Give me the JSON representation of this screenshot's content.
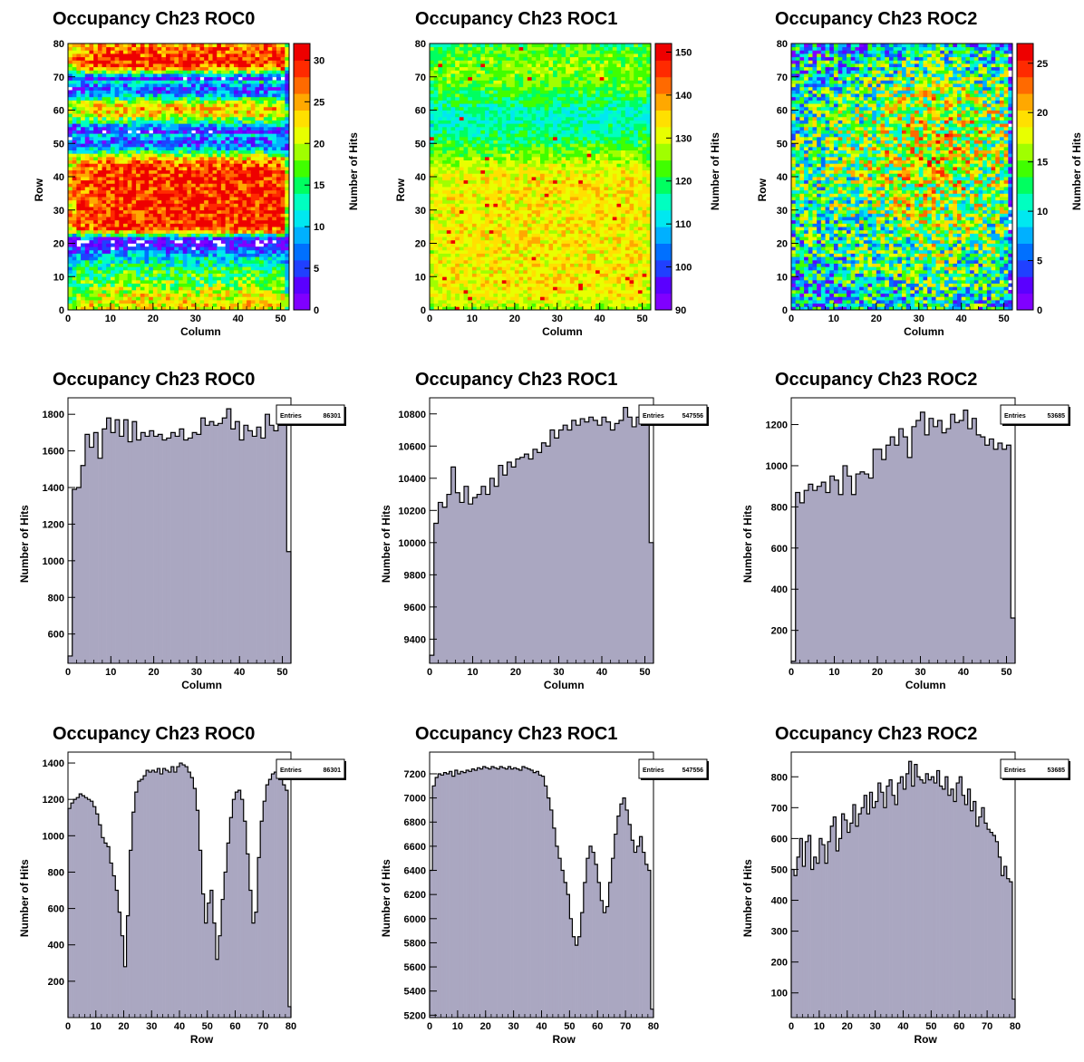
{
  "chart_data": [
    {
      "id": "roc0-map",
      "type": "heatmap",
      "title": "Occupancy Ch23 ROC0",
      "xlabel": "Column",
      "ylabel": "Row",
      "zlabel": "Number of Hits",
      "xlim": [
        0,
        52
      ],
      "ylim": [
        0,
        80
      ],
      "zlim": [
        0,
        32
      ],
      "xticks": [
        0,
        10,
        20,
        30,
        40,
        50
      ],
      "yticks": [
        0,
        10,
        20,
        30,
        40,
        50,
        60,
        70,
        80
      ],
      "zticks": [
        0,
        5,
        10,
        15,
        20,
        25,
        30
      ],
      "row_profile": [
        0.68,
        0.7,
        0.69,
        0.67,
        0.66,
        0.63,
        0.6,
        0.57,
        0.54,
        0.52,
        0.5,
        0.47,
        0.45,
        0.42,
        0.4,
        0.36,
        0.3,
        0.22,
        0.14,
        0.08,
        0.03,
        0.18,
        0.45,
        0.75,
        0.88,
        0.91,
        0.92,
        0.92,
        0.93,
        0.92,
        0.93,
        0.92,
        0.93,
        0.92,
        0.93,
        0.93,
        0.92,
        0.93,
        0.92,
        0.93,
        0.94,
        0.92,
        0.9,
        0.86,
        0.8,
        0.72,
        0.6,
        0.45,
        0.3,
        0.2,
        0.18,
        0.22,
        0.3,
        0.1,
        0.18,
        0.3,
        0.45,
        0.58,
        0.68,
        0.72,
        0.74,
        0.7,
        0.6,
        0.45,
        0.3,
        0.2,
        0.18,
        0.25,
        0.35,
        0.1,
        0.3,
        0.55,
        0.78,
        0.88,
        0.92,
        0.92,
        0.9,
        0.88,
        0.85,
        0.8
      ],
      "col_profile": [
        0.8,
        0.86,
        0.92,
        0.94,
        0.95,
        0.96,
        0.97,
        0.98,
        0.99,
        1,
        1,
        1,
        1,
        1,
        1,
        1,
        1,
        1,
        1,
        1,
        1,
        1,
        1,
        1,
        1,
        1,
        1,
        1,
        1,
        1,
        1,
        1,
        1,
        1,
        1,
        1,
        1,
        1,
        1,
        1,
        1,
        1,
        1,
        1,
        1,
        1,
        1,
        1,
        1,
        1,
        1,
        0.65
      ],
      "zmax": 32
    },
    {
      "id": "roc1-map",
      "type": "heatmap",
      "title": "Occupancy Ch23 ROC1",
      "xlabel": "Column",
      "ylabel": "Row",
      "zlabel": "Number of Hits",
      "xlim": [
        0,
        52
      ],
      "ylim": [
        0,
        80
      ],
      "zlim": [
        90,
        152
      ],
      "xticks": [
        0,
        10,
        20,
        30,
        40,
        50
      ],
      "yticks": [
        0,
        10,
        20,
        30,
        40,
        50,
        60,
        70,
        80
      ],
      "zticks": [
        90,
        100,
        110,
        120,
        130,
        140,
        150
      ],
      "row_profile": [
        0.6,
        0.66,
        0.7,
        0.72,
        0.73,
        0.74,
        0.75,
        0.75,
        0.76,
        0.76,
        0.76,
        0.76,
        0.76,
        0.76,
        0.76,
        0.76,
        0.76,
        0.76,
        0.76,
        0.76,
        0.76,
        0.76,
        0.76,
        0.76,
        0.76,
        0.76,
        0.76,
        0.76,
        0.76,
        0.76,
        0.76,
        0.76,
        0.76,
        0.76,
        0.76,
        0.76,
        0.76,
        0.76,
        0.76,
        0.75,
        0.74,
        0.72,
        0.7,
        0.67,
        0.64,
        0.6,
        0.57,
        0.54,
        0.5,
        0.47,
        0.44,
        0.41,
        0.38,
        0.36,
        0.34,
        0.33,
        0.32,
        0.31,
        0.32,
        0.34,
        0.36,
        0.38,
        0.4,
        0.42,
        0.45,
        0.48,
        0.5,
        0.52,
        0.54,
        0.56,
        0.57,
        0.58,
        0.58,
        0.57,
        0.56,
        0.55,
        0.54,
        0.52,
        0.5,
        0.46
      ],
      "col_profile": [
        0.9,
        0.93,
        0.95,
        0.96,
        0.97,
        0.97,
        0.98,
        0.98,
        0.98,
        0.98,
        0.98,
        0.98,
        0.98,
        0.99,
        0.99,
        0.99,
        0.99,
        0.99,
        0.99,
        0.99,
        1,
        1,
        1,
        1,
        1,
        1,
        1,
        1,
        1,
        1,
        1,
        1,
        1,
        1,
        1,
        1,
        1,
        1,
        1,
        1,
        1,
        1,
        1,
        1,
        1,
        1,
        1,
        1,
        1,
        1,
        0.97,
        0.92
      ],
      "zmax": 152,
      "zmin": 90
    },
    {
      "id": "roc2-map",
      "type": "heatmap",
      "title": "Occupancy Ch23 ROC2",
      "xlabel": "Column",
      "ylabel": "Row",
      "zlabel": "Number of Hits",
      "xlim": [
        0,
        52
      ],
      "ylim": [
        0,
        80
      ],
      "zlim": [
        0,
        27
      ],
      "xticks": [
        0,
        10,
        20,
        30,
        40,
        50
      ],
      "yticks": [
        0,
        10,
        20,
        30,
        40,
        50,
        60,
        70,
        80
      ],
      "zticks": [
        0,
        5,
        10,
        15,
        20,
        25
      ],
      "row_profile": [
        0.42,
        0.42,
        0.43,
        0.43,
        0.44,
        0.44,
        0.45,
        0.45,
        0.46,
        0.47,
        0.47,
        0.48,
        0.49,
        0.5,
        0.5,
        0.51,
        0.52,
        0.52,
        0.53,
        0.54,
        0.54,
        0.55,
        0.56,
        0.56,
        0.57,
        0.58,
        0.58,
        0.59,
        0.6,
        0.6,
        0.61,
        0.61,
        0.62,
        0.62,
        0.63,
        0.63,
        0.64,
        0.64,
        0.65,
        0.65,
        0.66,
        0.66,
        0.66,
        0.66,
        0.67,
        0.66,
        0.66,
        0.66,
        0.66,
        0.66,
        0.66,
        0.66,
        0.65,
        0.65,
        0.64,
        0.64,
        0.63,
        0.63,
        0.62,
        0.62,
        0.61,
        0.6,
        0.6,
        0.59,
        0.58,
        0.57,
        0.56,
        0.55,
        0.54,
        0.52,
        0.51,
        0.5,
        0.48,
        0.47,
        0.45,
        0.44,
        0.42,
        0.41,
        0.4,
        0.38
      ],
      "col_profile": [
        0.7,
        0.72,
        0.72,
        0.72,
        0.73,
        0.73,
        0.74,
        0.75,
        0.76,
        0.77,
        0.78,
        0.79,
        0.8,
        0.81,
        0.82,
        0.83,
        0.84,
        0.85,
        0.86,
        0.87,
        0.88,
        0.9,
        0.91,
        0.92,
        0.93,
        0.95,
        0.96,
        0.97,
        0.98,
        0.99,
        1,
        1,
        1,
        1,
        1,
        1,
        0.99,
        0.98,
        0.97,
        0.96,
        0.95,
        0.94,
        0.93,
        0.92,
        0.91,
        0.9,
        0.89,
        0.89,
        0.88,
        0.88,
        0.89,
        0.3
      ],
      "zmax": 27
    },
    {
      "id": "roc0-col",
      "type": "bar",
      "title": "Occupancy Ch23 ROC0",
      "xlabel": "Column",
      "ylabel": "Number of Hits",
      "xlim": [
        0,
        52
      ],
      "ylim": [
        440,
        1890
      ],
      "xticks": [
        0,
        10,
        20,
        30,
        40,
        50
      ],
      "yticks": [
        600,
        800,
        1000,
        1200,
        1400,
        1600,
        1800
      ],
      "entries": "86301",
      "values": [
        480,
        1390,
        1400,
        1520,
        1690,
        1620,
        1700,
        1560,
        1720,
        1780,
        1700,
        1770,
        1680,
        1770,
        1650,
        1760,
        1660,
        1700,
        1680,
        1710,
        1680,
        1690,
        1660,
        1670,
        1700,
        1680,
        1720,
        1660,
        1670,
        1700,
        1690,
        1780,
        1740,
        1760,
        1740,
        1750,
        1780,
        1830,
        1720,
        1760,
        1660,
        1740,
        1710,
        1680,
        1730,
        1670,
        1800,
        1740,
        1710,
        1820,
        1760,
        1050
      ]
    },
    {
      "id": "roc1-col",
      "type": "bar",
      "title": "Occupancy Ch23 ROC1",
      "xlabel": "Column",
      "ylabel": "Number of Hits",
      "xlim": [
        0,
        52
      ],
      "ylim": [
        9250,
        10900
      ],
      "xticks": [
        0,
        10,
        20,
        30,
        40,
        50
      ],
      "yticks": [
        9400,
        9600,
        9800,
        10000,
        10200,
        10400,
        10600,
        10800
      ],
      "entries": "547556",
      "values": [
        9300,
        10120,
        10250,
        10220,
        10300,
        10470,
        10310,
        10250,
        10350,
        10240,
        10280,
        10300,
        10350,
        10300,
        10400,
        10350,
        10480,
        10420,
        10500,
        10470,
        10520,
        10530,
        10550,
        10520,
        10580,
        10560,
        10620,
        10600,
        10700,
        10650,
        10700,
        10730,
        10700,
        10760,
        10730,
        10770,
        10750,
        10780,
        10760,
        10730,
        10780,
        10750,
        10700,
        10740,
        10760,
        10840,
        10780,
        10720,
        10780,
        10800,
        10760,
        10000
      ]
    },
    {
      "id": "roc2-col",
      "type": "bar",
      "title": "Occupancy Ch23 ROC2",
      "xlabel": "Column",
      "ylabel": "Number of Hits",
      "xlim": [
        0,
        52
      ],
      "ylim": [
        40,
        1330
      ],
      "xticks": [
        0,
        10,
        20,
        30,
        40,
        50
      ],
      "yticks": [
        200,
        400,
        600,
        800,
        1000,
        1200
      ],
      "entries": "53685",
      "values": [
        50,
        870,
        820,
        880,
        910,
        880,
        900,
        920,
        870,
        950,
        930,
        860,
        1000,
        950,
        860,
        960,
        970,
        960,
        940,
        1080,
        1080,
        1030,
        1100,
        1140,
        1100,
        1180,
        1140,
        1040,
        1190,
        1220,
        1260,
        1150,
        1230,
        1190,
        1220,
        1160,
        1180,
        1250,
        1210,
        1220,
        1270,
        1180,
        1230,
        1150,
        1140,
        1100,
        1130,
        1080,
        1110,
        1080,
        1100,
        260
      ]
    },
    {
      "id": "roc0-row",
      "type": "bar",
      "title": "Occupancy Ch23 ROC0",
      "xlabel": "Row",
      "ylabel": "Number of Hits",
      "xlim": [
        0,
        80
      ],
      "ylim": [
        0,
        1460
      ],
      "xticks": [
        0,
        10,
        20,
        30,
        40,
        50,
        60,
        70,
        80
      ],
      "yticks": [
        200,
        400,
        600,
        800,
        1000,
        1200,
        1400
      ],
      "entries": "86301",
      "values": [
        1150,
        1180,
        1200,
        1210,
        1230,
        1220,
        1210,
        1200,
        1190,
        1160,
        1120,
        1060,
        990,
        960,
        940,
        850,
        780,
        700,
        580,
        450,
        280,
        560,
        920,
        1130,
        1240,
        1300,
        1310,
        1330,
        1360,
        1350,
        1360,
        1350,
        1370,
        1340,
        1370,
        1360,
        1350,
        1380,
        1350,
        1380,
        1400,
        1390,
        1380,
        1350,
        1320,
        1260,
        1140,
        920,
        680,
        520,
        630,
        700,
        520,
        320,
        450,
        650,
        800,
        960,
        1100,
        1200,
        1240,
        1250,
        1200,
        1080,
        900,
        700,
        520,
        580,
        880,
        1080,
        1190,
        1280,
        1310,
        1340,
        1350,
        1330,
        1310,
        1280,
        1250,
        60
      ]
    },
    {
      "id": "roc1-row",
      "type": "bar",
      "title": "Occupancy Ch23 ROC1",
      "xlabel": "Row",
      "ylabel": "Number of Hits",
      "xlim": [
        0,
        80
      ],
      "ylim": [
        5180,
        7380
      ],
      "xticks": [
        0,
        10,
        20,
        30,
        40,
        50,
        60,
        70,
        80
      ],
      "yticks": [
        5200,
        5400,
        5600,
        5800,
        6000,
        6200,
        6400,
        6600,
        6800,
        7000,
        7200
      ],
      "entries": "547556",
      "values": [
        6400,
        7100,
        7170,
        7200,
        7190,
        7210,
        7200,
        7220,
        7180,
        7230,
        7200,
        7220,
        7210,
        7230,
        7220,
        7240,
        7230,
        7250,
        7240,
        7260,
        7250,
        7240,
        7260,
        7250,
        7240,
        7260,
        7250,
        7240,
        7260,
        7240,
        7250,
        7240,
        7230,
        7260,
        7250,
        7240,
        7230,
        7210,
        7220,
        7190,
        7180,
        7100,
        7000,
        6900,
        6750,
        6600,
        6500,
        6400,
        6300,
        6200,
        6000,
        5850,
        5780,
        5850,
        6050,
        6300,
        6500,
        6600,
        6550,
        6450,
        6300,
        6150,
        6050,
        6100,
        6300,
        6500,
        6700,
        6850,
        6950,
        7000,
        6900,
        6780,
        6650,
        6550,
        6600,
        6680,
        6550,
        6450,
        6400,
        5250
      ]
    },
    {
      "id": "roc2-row",
      "type": "bar",
      "title": "Occupancy Ch23 ROC2",
      "xlabel": "Row",
      "ylabel": "Number of Hits",
      "xlim": [
        0,
        80
      ],
      "ylim": [
        20,
        880
      ],
      "xticks": [
        0,
        10,
        20,
        30,
        40,
        50,
        60,
        70,
        80
      ],
      "yticks": [
        100,
        200,
        300,
        400,
        500,
        600,
        700,
        800
      ],
      "entries": "53685",
      "values": [
        500,
        480,
        540,
        600,
        510,
        590,
        610,
        500,
        540,
        520,
        600,
        580,
        520,
        590,
        640,
        670,
        560,
        600,
        680,
        660,
        620,
        650,
        710,
        640,
        680,
        700,
        740,
        680,
        750,
        700,
        720,
        780,
        750,
        700,
        770,
        790,
        740,
        710,
        780,
        800,
        760,
        810,
        850,
        770,
        840,
        800,
        790,
        780,
        810,
        790,
        800,
        780,
        820,
        770,
        760,
        800,
        740,
        760,
        720,
        780,
        800,
        740,
        710,
        760,
        690,
        720,
        640,
        670,
        700,
        650,
        630,
        620,
        610,
        590,
        540,
        480,
        510,
        470,
        460,
        80
      ]
    }
  ]
}
